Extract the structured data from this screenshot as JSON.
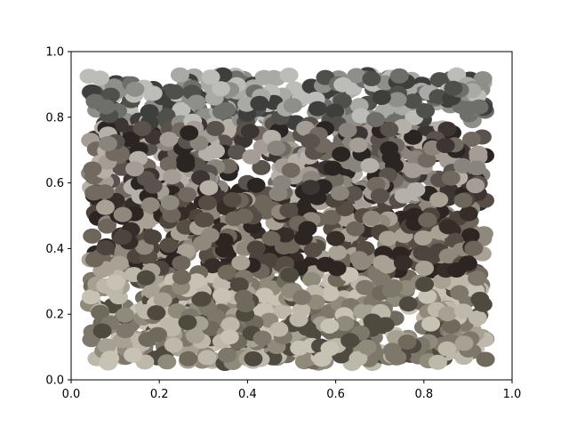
{
  "chart_data": {
    "type": "scatter",
    "title": "",
    "xlabel": "",
    "ylabel": "",
    "xlim": [
      0.0,
      1.0
    ],
    "ylim": [
      0.0,
      1.0
    ],
    "xticks": [
      "0.0",
      "0.2",
      "0.4",
      "0.6",
      "0.8",
      "1.0"
    ],
    "yticks": [
      "0.0",
      "0.2",
      "0.4",
      "0.6",
      "0.8",
      "1.0"
    ],
    "grid": false,
    "legend": "none",
    "points": {
      "x_range": [
        0.04,
        0.94
      ],
      "y_range": [
        0.05,
        0.93
      ],
      "count_estimate": 1800,
      "marker": "ellipse",
      "palette": [
        "#a8a294",
        "#8e8a7c",
        "#6d675e",
        "#4d463f",
        "#372f2b",
        "#2b2424",
        "#b9b6ab",
        "#c9c6bb",
        "#5b5952",
        "#7d7a72",
        "#9a9891",
        "#3f3c39"
      ],
      "bands": [
        {
          "y_range": [
            0.78,
            0.93
          ],
          "colors": [
            "#8f8f8a",
            "#6e6f6b",
            "#a9a9a5",
            "#4f4f4c",
            "#bcbcb8",
            "#3e3e3c"
          ]
        },
        {
          "y_range": [
            0.55,
            0.78
          ],
          "colors": [
            "#8a857c",
            "#a59d95",
            "#3d3533",
            "#2a2423",
            "#b6b1a8",
            "#5a534d",
            "#726a61"
          ]
        },
        {
          "y_range": [
            0.33,
            0.55
          ],
          "colors": [
            "#4d443e",
            "#362d29",
            "#6e655b",
            "#8f887c",
            "#a9a294",
            "#574d44",
            "#2c2522"
          ]
        },
        {
          "y_range": [
            0.05,
            0.33
          ],
          "colors": [
            "#8f8a7a",
            "#a6a192",
            "#6f6a5c",
            "#bdb8a9",
            "#4f4a40",
            "#7d786b",
            "#c7c2b3"
          ]
        }
      ]
    }
  }
}
